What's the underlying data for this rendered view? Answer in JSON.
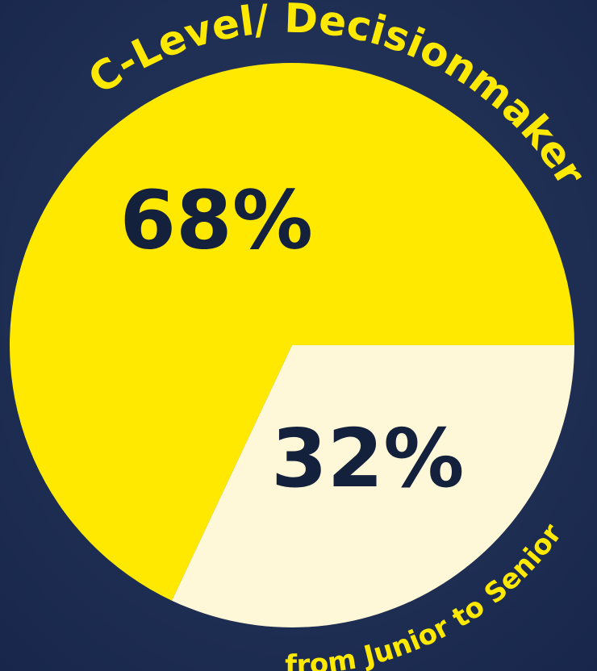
{
  "chart_data": {
    "type": "pie",
    "categories": [
      "C-Level/ Decisionmaker",
      "from Junior to Senior"
    ],
    "values": [
      68,
      32
    ],
    "value_labels": [
      "68%",
      "32%"
    ],
    "colors": [
      "#ffe900",
      "#fff8d8"
    ]
  }
}
